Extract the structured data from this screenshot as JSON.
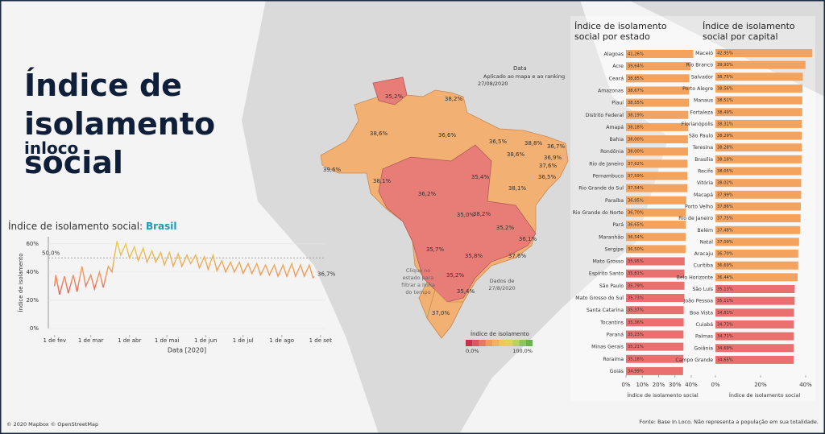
{
  "header": {
    "title": "Índice de isolamento social",
    "subtitle": "inloco"
  },
  "chart_data": [
    {
      "type": "line",
      "title": "Índice de isolamento social: ",
      "title_highlight": "Brasil",
      "xlabel": "Data [2020]",
      "ylabel": "Índice de isolamento",
      "xlim": [
        "2020-01-27",
        "2020-09-05"
      ],
      "xticks": [
        {
          "value": "2020-02-01",
          "label": "1 de fev"
        },
        {
          "value": "2020-03-01",
          "label": "1 de mar"
        },
        {
          "value": "2020-04-01",
          "label": "1 de abr"
        },
        {
          "value": "2020-05-01",
          "label": "1 de mai"
        },
        {
          "value": "2020-06-01",
          "label": "1 de jun"
        },
        {
          "value": "2020-07-01",
          "label": "1 de jul"
        },
        {
          "value": "2020-08-01",
          "label": "1 de ago"
        },
        {
          "value": "2020-09-01",
          "label": "1 de set"
        }
      ],
      "ylim": [
        0,
        65
      ],
      "yticks": [
        {
          "value": 0,
          "label": "0%"
        },
        {
          "value": 20,
          "label": "20%"
        },
        {
          "value": 40,
          "label": "40%"
        },
        {
          "value": 60,
          "label": "60%"
        }
      ],
      "grid": true,
      "reference_line": {
        "value": 50,
        "label": "50,0%"
      },
      "end_label": "36,7%",
      "x": [
        "2020-02-01",
        "2020-02-02",
        "2020-02-05",
        "2020-02-09",
        "2020-02-12",
        "2020-02-16",
        "2020-02-19",
        "2020-02-23",
        "2020-02-26",
        "2020-03-01",
        "2020-03-04",
        "2020-03-08",
        "2020-03-11",
        "2020-03-15",
        "2020-03-18",
        "2020-03-22",
        "2020-03-25",
        "2020-03-29",
        "2020-04-01",
        "2020-04-05",
        "2020-04-08",
        "2020-04-12",
        "2020-04-15",
        "2020-04-19",
        "2020-04-22",
        "2020-04-26",
        "2020-04-29",
        "2020-05-03",
        "2020-05-06",
        "2020-05-10",
        "2020-05-13",
        "2020-05-17",
        "2020-05-20",
        "2020-05-24",
        "2020-05-27",
        "2020-05-31",
        "2020-06-03",
        "2020-06-07",
        "2020-06-10",
        "2020-06-14",
        "2020-06-17",
        "2020-06-21",
        "2020-06-24",
        "2020-06-28",
        "2020-07-01",
        "2020-07-05",
        "2020-07-08",
        "2020-07-12",
        "2020-07-15",
        "2020-07-19",
        "2020-07-22",
        "2020-07-26",
        "2020-07-29",
        "2020-08-02",
        "2020-08-05",
        "2020-08-09",
        "2020-08-12",
        "2020-08-16",
        "2020-08-19",
        "2020-08-23",
        "2020-08-26",
        "2020-08-27"
      ],
      "values": [
        30,
        38,
        24,
        37,
        25,
        38,
        26,
        44,
        30,
        38,
        28,
        40,
        29,
        44,
        40,
        62,
        52,
        60,
        50,
        58,
        48,
        57,
        47,
        55,
        47,
        54,
        45,
        54,
        44,
        53,
        44,
        52,
        46,
        52,
        43,
        51,
        42,
        52,
        41,
        48,
        40,
        47,
        40,
        47,
        39,
        46,
        39,
        46,
        38,
        45,
        38,
        45,
        37,
        45,
        37,
        46,
        37,
        45,
        37,
        45,
        36,
        36.7
      ]
    },
    {
      "type": "hbar",
      "title": "Índice de isolamento social por estado",
      "xlabel": "Índice de isolamento social",
      "xlim": [
        0,
        42
      ],
      "xticks": [
        {
          "value": 0,
          "label": "0%"
        },
        {
          "value": 10,
          "label": "10%"
        },
        {
          "value": 20,
          "label": "20%"
        },
        {
          "value": 30,
          "label": "30%"
        },
        {
          "value": 40,
          "label": "40%"
        }
      ],
      "categories": [
        "Alagoas",
        "Acre",
        "Ceará",
        "Amazonas",
        "Piauí",
        "Distrito Federal",
        "Amapá",
        "Bahia",
        "Rondônia",
        "Rio de Janeiro",
        "Pernambuco",
        "Rio Grande do Sul",
        "Paraíba",
        "Rio Grande do Norte",
        "Pará",
        "Maranhão",
        "Sergipe",
        "Mato Grosso",
        "Espírito Santo",
        "São Paulo",
        "Mato Grosso do Sul",
        "Santa Catarina",
        "Tocantins",
        "Paraná",
        "Minas Gerais",
        "Roraima",
        "Goiás"
      ],
      "values": [
        41.26,
        39.64,
        38.85,
        38.67,
        38.55,
        38.19,
        38.18,
        38.0,
        38.0,
        37.62,
        37.59,
        37.54,
        36.95,
        36.7,
        36.65,
        36.54,
        36.5,
        35.95,
        35.81,
        35.79,
        35.73,
        35.37,
        35.36,
        35.23,
        35.21,
        35.18,
        34.99
      ],
      "value_labels": [
        "41,26%",
        "39,64%",
        "38,85%",
        "38,67%",
        "38,55%",
        "38,19%",
        "38,18%",
        "38,00%",
        "38,00%",
        "37,62%",
        "37,59%",
        "37,54%",
        "36,95%",
        "36,70%",
        "36,65%",
        "36,54%",
        "36,50%",
        "35,95%",
        "35,81%",
        "35,79%",
        "35,73%",
        "35,37%",
        "35,36%",
        "35,23%",
        "35,21%",
        "35,18%",
        "34,99%"
      ],
      "colors": [
        "#f4a35f",
        "#f4a35f",
        "#f4a35f",
        "#f4a35f",
        "#f4a35f",
        "#f4a35f",
        "#f4a35f",
        "#f4a35f",
        "#f4a35f",
        "#f4a35f",
        "#f4a35f",
        "#f4a35f",
        "#f4a35f",
        "#f4a35f",
        "#f4a35f",
        "#f4a35f",
        "#f4a35f",
        "#e9706e",
        "#e9706e",
        "#e9706e",
        "#e9706e",
        "#e9706e",
        "#e9706e",
        "#e9706e",
        "#e9706e",
        "#e9706e",
        "#e9706e"
      ]
    },
    {
      "type": "hbar",
      "title": "Índice de isolamento social por capital",
      "xlabel": "Índice de isolamento social",
      "xlim": [
        0,
        44
      ],
      "xticks": [
        {
          "value": 0,
          "label": "0%"
        },
        {
          "value": 20,
          "label": "20%"
        },
        {
          "value": 40,
          "label": "40%"
        }
      ],
      "categories": [
        "Maceió",
        "Rio Branco",
        "Salvador",
        "Porto Alegre",
        "Manaus",
        "Fortaleza",
        "Florianópolis",
        "São Paulo",
        "Teresina",
        "Brasília",
        "Recife",
        "Vitória",
        "Macapá",
        "Porto Velho",
        "Rio de Janeiro",
        "Belém",
        "Natal",
        "Aracaju",
        "Curitiba",
        "Belo Horizonte",
        "São Luís",
        "João Pessoa",
        "Boa Vista",
        "Cuiabá",
        "Palmas",
        "Goiânia",
        "Campo Grande"
      ],
      "values": [
        42.95,
        39.93,
        38.75,
        38.56,
        38.51,
        38.49,
        38.31,
        38.29,
        38.28,
        38.18,
        38.05,
        38.02,
        37.99,
        37.86,
        37.75,
        37.48,
        37.09,
        36.7,
        36.69,
        36.44,
        35.13,
        35.11,
        34.81,
        34.73,
        34.71,
        34.69,
        34.65
      ],
      "value_labels": [
        "42,95%",
        "39,93%",
        "38,75%",
        "38,56%",
        "38,51%",
        "38,49%",
        "38,31%",
        "38,29%",
        "38,28%",
        "38,18%",
        "38,05%",
        "38,02%",
        "37,99%",
        "37,86%",
        "37,75%",
        "37,48%",
        "37,09%",
        "36,70%",
        "36,69%",
        "36,44%",
        "35,13%",
        "35,11%",
        "34,81%",
        "34,73%",
        "34,71%",
        "34,69%",
        "34,65%"
      ],
      "colors": [
        "#f4a35f",
        "#f4a35f",
        "#f4a35f",
        "#f4a35f",
        "#f4a35f",
        "#f4a35f",
        "#f4a35f",
        "#f4a35f",
        "#f4a35f",
        "#f4a35f",
        "#f4a35f",
        "#f4a35f",
        "#f4a35f",
        "#f4a35f",
        "#f4a35f",
        "#f4a35f",
        "#f4a35f",
        "#f4a35f",
        "#f4a35f",
        "#f4a35f",
        "#e9706e",
        "#e9706e",
        "#e9706e",
        "#e9706e",
        "#e9706e",
        "#e9706e",
        "#e9706e"
      ]
    }
  ],
  "map": {
    "region_labels": [
      "35,2%",
      "38,2%",
      "38,6%",
      "36,6%",
      "36,5%",
      "38,8%",
      "36,7%",
      "38,6%",
      "36,9%",
      "37,6%",
      "36,5%",
      "39,6%",
      "38,1%",
      "35,4%",
      "36,2%",
      "38,1%",
      "35,0%",
      "38,2%",
      "35,2%",
      "36,1%",
      "35,7%",
      "35,8%",
      "37,6%",
      "35,2%",
      "35,4%",
      "37,0%"
    ],
    "date_title": "Data",
    "date_note": "Aplicado ao mapa e ao ranking",
    "date_value": "27/08/2020",
    "click_hint": "Clique no estado para filtrar a linha do tempo",
    "data_date": "Dados de 27/8/2020",
    "legend_title": "Índice de isolamento",
    "legend_min": "0,0%",
    "legend_max": "100,0%"
  },
  "footer": {
    "credits": "© 2020 Mapbox © OpenStreetMap",
    "source": "Fonte: Base In Loco. Não representa a população em sua totalidade."
  }
}
